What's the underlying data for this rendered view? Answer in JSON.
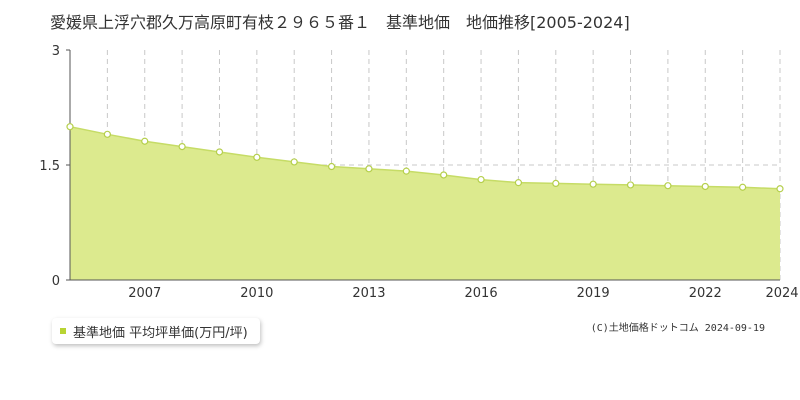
{
  "page": {
    "title": "愛媛県上浮穴郡久万高原町有枝２９６５番１　基準地価　地価推移[2005-2024]",
    "copyright": "(C)土地価格ドットコム 2024-09-19"
  },
  "colors": {
    "area_fill": "#dcea8e",
    "line": "#c6dc66",
    "marker_stroke": "#b5cf4c",
    "marker_fill": "#ffffff",
    "legend_swatch": "#b8d433",
    "grid": "#c8c8c8",
    "axis": "#555555"
  },
  "chart_data": {
    "type": "area",
    "x": [
      2005,
      2006,
      2007,
      2008,
      2009,
      2010,
      2011,
      2012,
      2013,
      2014,
      2015,
      2016,
      2017,
      2018,
      2019,
      2020,
      2021,
      2022,
      2023,
      2024
    ],
    "x_tick_labels": [
      "2007",
      "2010",
      "2013",
      "2016",
      "2019",
      "2022",
      "2024"
    ],
    "y_tick_labels": [
      "0",
      "1.5",
      "3"
    ],
    "xlim": [
      2005,
      2024
    ],
    "ylim": [
      0,
      3
    ],
    "grid": true,
    "legend_position": "bottom-left",
    "series": [
      {
        "name": "基準地価 平均坪単価(万円/坪)",
        "values": [
          2.0,
          1.9,
          1.81,
          1.74,
          1.67,
          1.6,
          1.54,
          1.48,
          1.45,
          1.42,
          1.37,
          1.31,
          1.27,
          1.26,
          1.25,
          1.24,
          1.23,
          1.22,
          1.21,
          1.19
        ]
      }
    ]
  }
}
